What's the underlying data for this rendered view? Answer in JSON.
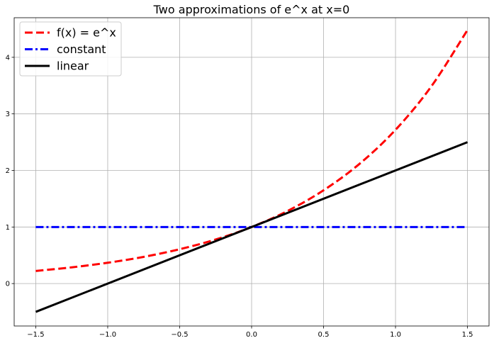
{
  "chart_data": {
    "type": "line",
    "title": "Two approximations of e^x at x=0",
    "xlabel": "",
    "ylabel": "",
    "xlim": [
      -1.65,
      1.65
    ],
    "ylim": [
      -0.75,
      4.7
    ],
    "xticks": [
      -1.5,
      -1.0,
      -0.5,
      0.0,
      0.5,
      1.0,
      1.5
    ],
    "xtick_labels": [
      "−1.5",
      "−1.0",
      "−0.5",
      "0.0",
      "0.5",
      "1.0",
      "1.5"
    ],
    "yticks": [
      0,
      1,
      2,
      3,
      4
    ],
    "ytick_labels": [
      "0",
      "1",
      "2",
      "3",
      "4"
    ],
    "grid": true,
    "legend_position": "top-left",
    "series": [
      {
        "name": "f(x) = e^x",
        "color": "#ff0000",
        "dash": "dashed",
        "x": [
          -1.5,
          -1.25,
          -1.0,
          -0.75,
          -0.5,
          -0.25,
          0.0,
          0.25,
          0.5,
          0.75,
          1.0,
          1.25,
          1.5
        ],
        "y": [
          0.223,
          0.287,
          0.368,
          0.472,
          0.607,
          0.779,
          1.0,
          1.284,
          1.649,
          2.117,
          2.718,
          3.49,
          4.482
        ]
      },
      {
        "name": "constant",
        "color": "#0000ff",
        "dash": "dashdot",
        "x": [
          -1.5,
          1.5
        ],
        "y": [
          1.0,
          1.0
        ]
      },
      {
        "name": "linear",
        "color": "#000000",
        "dash": "solid",
        "x": [
          -1.5,
          1.5
        ],
        "y": [
          -0.5,
          2.5
        ]
      }
    ]
  }
}
